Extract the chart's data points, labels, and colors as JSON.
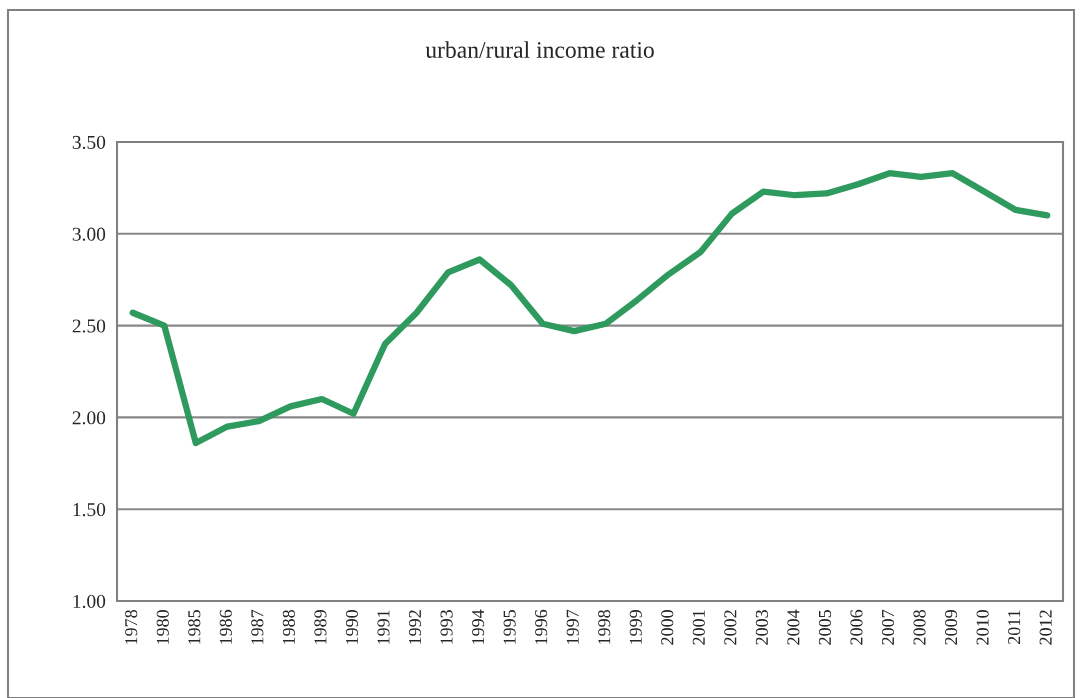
{
  "chart_data": {
    "type": "line",
    "title": "urban/rural income ratio",
    "categories": [
      "1978",
      "1980",
      "1985",
      "1986",
      "1987",
      "1988",
      "1989",
      "1990",
      "1991",
      "1992",
      "1993",
      "1994",
      "1995",
      "1996",
      "1997",
      "1998",
      "1999",
      "2000",
      "2001",
      "2002",
      "2003",
      "2004",
      "2005",
      "2006",
      "2007",
      "2008",
      "2009",
      "2010",
      "2011",
      "2012"
    ],
    "series": [
      {
        "color": "#2e9a5e",
        "values": [
          2.57,
          2.5,
          1.86,
          1.95,
          1.98,
          2.06,
          2.1,
          2.02,
          2.4,
          2.57,
          2.79,
          2.86,
          2.72,
          2.51,
          2.47,
          2.51,
          2.64,
          2.78,
          2.9,
          3.11,
          3.23,
          3.21,
          3.22,
          3.27,
          3.33,
          3.31,
          3.33,
          3.23,
          3.13,
          3.1
        ]
      }
    ],
    "ylim": [
      1.0,
      3.5
    ],
    "yticks": [
      {
        "value": 1.0,
        "label": "1.00"
      },
      {
        "value": 1.5,
        "label": "1.50"
      },
      {
        "value": 2.0,
        "label": "2.00"
      },
      {
        "value": 2.5,
        "label": "2.50"
      },
      {
        "value": 3.0,
        "label": "3.00"
      },
      {
        "value": 3.5,
        "label": "3.50"
      }
    ],
    "grid": "y",
    "legend": false,
    "marker": "none",
    "line_style": "solid"
  }
}
